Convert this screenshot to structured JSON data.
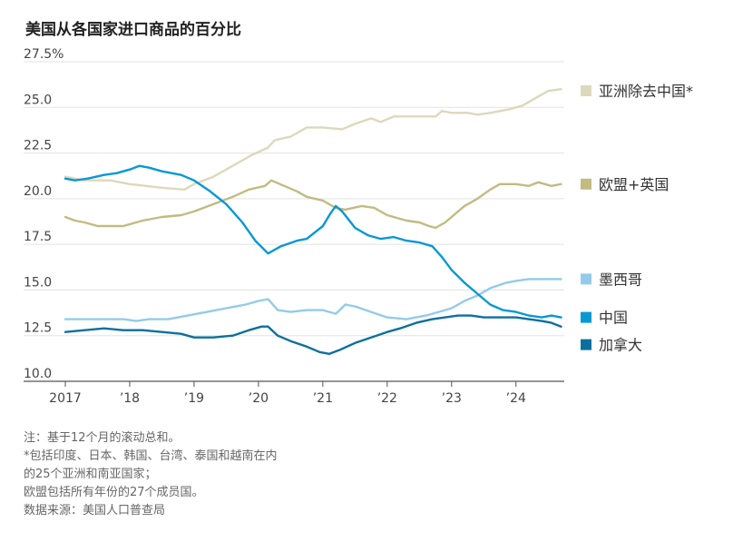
{
  "title": "美国从各国家进口商品的百分比",
  "chart_data": {
    "type": "line",
    "title": "美国从各国家进口商品的百分比",
    "xlabel": "",
    "ylabel": "",
    "ylim": [
      10,
      27.5
    ],
    "xlim": [
      2017,
      2024.75
    ],
    "y_ticks": [
      27.5,
      25,
      22.5,
      20,
      17.5,
      15,
      12.5,
      10
    ],
    "y_tick_labels": [
      "27.5%",
      "25.0",
      "22.5",
      "20.0",
      "17.5",
      "15.0",
      "12.5",
      "10.0"
    ],
    "x_ticks": [
      2017,
      2018,
      2019,
      2020,
      2021,
      2022,
      2023,
      2024
    ],
    "x_tick_labels": [
      "2017",
      "’18",
      "’19",
      "’20",
      "’21",
      "’22",
      "’23",
      "’24"
    ],
    "grid": true,
    "legend": "right",
    "series": [
      {
        "name": "亚洲除去中国*",
        "color": "#ddd8bd",
        "points": [
          [
            2017.0,
            21.2
          ],
          [
            2017.3,
            21.0
          ],
          [
            2017.7,
            21.0
          ],
          [
            2018.0,
            20.8
          ],
          [
            2018.5,
            20.6
          ],
          [
            2018.85,
            20.5
          ],
          [
            2019.0,
            20.8
          ],
          [
            2019.3,
            21.2
          ],
          [
            2019.6,
            21.8
          ],
          [
            2019.9,
            22.4
          ],
          [
            2020.15,
            22.8
          ],
          [
            2020.25,
            23.2
          ],
          [
            2020.5,
            23.4
          ],
          [
            2020.75,
            23.9
          ],
          [
            2021.0,
            23.9
          ],
          [
            2021.3,
            23.8
          ],
          [
            2021.5,
            24.1
          ],
          [
            2021.75,
            24.4
          ],
          [
            2021.9,
            24.2
          ],
          [
            2022.1,
            24.5
          ],
          [
            2022.5,
            24.5
          ],
          [
            2022.75,
            24.5
          ],
          [
            2022.85,
            24.8
          ],
          [
            2023.0,
            24.7
          ],
          [
            2023.25,
            24.7
          ],
          [
            2023.4,
            24.6
          ],
          [
            2023.6,
            24.7
          ],
          [
            2023.9,
            24.9
          ],
          [
            2024.1,
            25.1
          ],
          [
            2024.3,
            25.5
          ],
          [
            2024.5,
            25.9
          ],
          [
            2024.7,
            26.0
          ]
        ]
      },
      {
        "name": "欧盟+英国",
        "color": "#c2bb82",
        "points": [
          [
            2017.0,
            19.0
          ],
          [
            2017.15,
            18.8
          ],
          [
            2017.3,
            18.7
          ],
          [
            2017.5,
            18.5
          ],
          [
            2017.9,
            18.5
          ],
          [
            2018.2,
            18.8
          ],
          [
            2018.5,
            19.0
          ],
          [
            2018.8,
            19.1
          ],
          [
            2019.0,
            19.3
          ],
          [
            2019.3,
            19.7
          ],
          [
            2019.6,
            20.1
          ],
          [
            2019.85,
            20.5
          ],
          [
            2020.1,
            20.7
          ],
          [
            2020.2,
            21.0
          ],
          [
            2020.4,
            20.7
          ],
          [
            2020.6,
            20.4
          ],
          [
            2020.75,
            20.1
          ],
          [
            2021.0,
            19.9
          ],
          [
            2021.2,
            19.5
          ],
          [
            2021.35,
            19.4
          ],
          [
            2021.6,
            19.6
          ],
          [
            2021.8,
            19.5
          ],
          [
            2022.0,
            19.1
          ],
          [
            2022.3,
            18.8
          ],
          [
            2022.5,
            18.7
          ],
          [
            2022.65,
            18.5
          ],
          [
            2022.75,
            18.4
          ],
          [
            2022.9,
            18.7
          ],
          [
            2023.0,
            19.0
          ],
          [
            2023.2,
            19.6
          ],
          [
            2023.4,
            20.0
          ],
          [
            2023.6,
            20.5
          ],
          [
            2023.75,
            20.8
          ],
          [
            2024.0,
            20.8
          ],
          [
            2024.2,
            20.7
          ],
          [
            2024.35,
            20.9
          ],
          [
            2024.55,
            20.7
          ],
          [
            2024.7,
            20.8
          ]
        ]
      },
      {
        "name": "墨西哥",
        "color": "#93cbe9",
        "points": [
          [
            2017.0,
            13.4
          ],
          [
            2017.5,
            13.4
          ],
          [
            2017.9,
            13.4
          ],
          [
            2018.1,
            13.3
          ],
          [
            2018.3,
            13.4
          ],
          [
            2018.6,
            13.4
          ],
          [
            2018.9,
            13.6
          ],
          [
            2019.2,
            13.8
          ],
          [
            2019.5,
            14.0
          ],
          [
            2019.8,
            14.2
          ],
          [
            2020.0,
            14.4
          ],
          [
            2020.15,
            14.5
          ],
          [
            2020.3,
            13.9
          ],
          [
            2020.5,
            13.8
          ],
          [
            2020.75,
            13.9
          ],
          [
            2021.0,
            13.9
          ],
          [
            2021.2,
            13.7
          ],
          [
            2021.35,
            14.2
          ],
          [
            2021.5,
            14.1
          ],
          [
            2021.75,
            13.8
          ],
          [
            2022.0,
            13.5
          ],
          [
            2022.3,
            13.4
          ],
          [
            2022.6,
            13.6
          ],
          [
            2022.8,
            13.8
          ],
          [
            2023.0,
            14.0
          ],
          [
            2023.2,
            14.4
          ],
          [
            2023.4,
            14.7
          ],
          [
            2023.6,
            15.1
          ],
          [
            2023.85,
            15.4
          ],
          [
            2024.0,
            15.5
          ],
          [
            2024.2,
            15.6
          ],
          [
            2024.5,
            15.6
          ],
          [
            2024.7,
            15.6
          ]
        ]
      },
      {
        "name": "中国",
        "color": "#0898d4",
        "points": [
          [
            2017.0,
            21.1
          ],
          [
            2017.15,
            21.0
          ],
          [
            2017.35,
            21.1
          ],
          [
            2017.6,
            21.3
          ],
          [
            2017.8,
            21.4
          ],
          [
            2018.0,
            21.6
          ],
          [
            2018.15,
            21.8
          ],
          [
            2018.3,
            21.7
          ],
          [
            2018.5,
            21.5
          ],
          [
            2018.8,
            21.3
          ],
          [
            2019.0,
            21.0
          ],
          [
            2019.25,
            20.4
          ],
          [
            2019.5,
            19.7
          ],
          [
            2019.75,
            18.7
          ],
          [
            2019.95,
            17.7
          ],
          [
            2020.15,
            17.0
          ],
          [
            2020.35,
            17.4
          ],
          [
            2020.6,
            17.7
          ],
          [
            2020.75,
            17.8
          ],
          [
            2021.0,
            18.5
          ],
          [
            2021.12,
            19.2
          ],
          [
            2021.2,
            19.6
          ],
          [
            2021.3,
            19.3
          ],
          [
            2021.5,
            18.4
          ],
          [
            2021.7,
            18.0
          ],
          [
            2021.9,
            17.8
          ],
          [
            2022.1,
            17.9
          ],
          [
            2022.3,
            17.7
          ],
          [
            2022.5,
            17.6
          ],
          [
            2022.7,
            17.4
          ],
          [
            2022.85,
            16.8
          ],
          [
            2023.0,
            16.1
          ],
          [
            2023.2,
            15.4
          ],
          [
            2023.4,
            14.8
          ],
          [
            2023.6,
            14.2
          ],
          [
            2023.8,
            13.9
          ],
          [
            2024.0,
            13.8
          ],
          [
            2024.2,
            13.6
          ],
          [
            2024.4,
            13.5
          ],
          [
            2024.55,
            13.6
          ],
          [
            2024.7,
            13.5
          ]
        ]
      },
      {
        "name": "加拿大",
        "color": "#0d6f9f",
        "points": [
          [
            2017.0,
            12.7
          ],
          [
            2017.3,
            12.8
          ],
          [
            2017.6,
            12.9
          ],
          [
            2017.9,
            12.8
          ],
          [
            2018.2,
            12.8
          ],
          [
            2018.5,
            12.7
          ],
          [
            2018.8,
            12.6
          ],
          [
            2019.0,
            12.4
          ],
          [
            2019.3,
            12.4
          ],
          [
            2019.6,
            12.5
          ],
          [
            2019.85,
            12.8
          ],
          [
            2020.05,
            13.0
          ],
          [
            2020.15,
            13.0
          ],
          [
            2020.3,
            12.5
          ],
          [
            2020.5,
            12.2
          ],
          [
            2020.75,
            11.9
          ],
          [
            2020.95,
            11.6
          ],
          [
            2021.1,
            11.5
          ],
          [
            2021.25,
            11.7
          ],
          [
            2021.5,
            12.1
          ],
          [
            2021.75,
            12.4
          ],
          [
            2022.0,
            12.7
          ],
          [
            2022.2,
            12.9
          ],
          [
            2022.45,
            13.2
          ],
          [
            2022.7,
            13.4
          ],
          [
            2022.9,
            13.5
          ],
          [
            2023.1,
            13.6
          ],
          [
            2023.3,
            13.6
          ],
          [
            2023.5,
            13.5
          ],
          [
            2023.75,
            13.5
          ],
          [
            2024.0,
            13.5
          ],
          [
            2024.2,
            13.4
          ],
          [
            2024.4,
            13.3
          ],
          [
            2024.55,
            13.2
          ],
          [
            2024.7,
            13.0
          ]
        ]
      }
    ]
  },
  "notes": [
    "注：基于12个月的滚动总和。",
    "*包括印度、日本、韩国、台湾、泰国和越南在内",
    "的25个亚洲和南亚国家；",
    "欧盟包括所有年份的27个成员国。",
    "数据来源：美国人口普查局"
  ]
}
